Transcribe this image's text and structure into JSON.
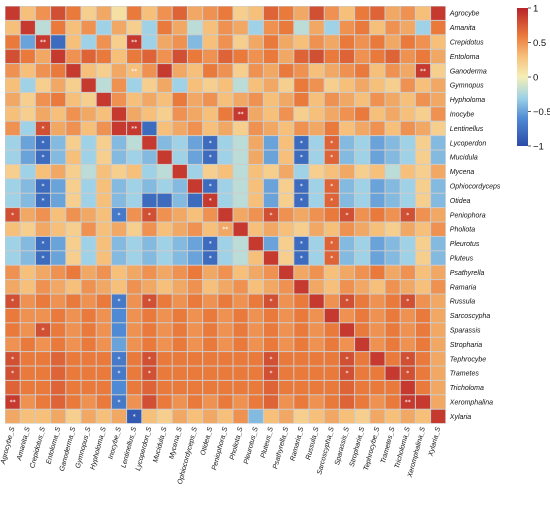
{
  "chart_data": {
    "type": "heatmap",
    "rows": [
      "Agrocybe",
      "Amanita",
      "Crepidotus",
      "Entoloma",
      "Ganoderma",
      "Gymnopus",
      "Hypholoma",
      "Inocybe",
      "Lentinellus",
      "Lycoperdon",
      "Mucidula",
      "Mycena",
      "Ophiocordyceps",
      "Otidea",
      "Peniophora",
      "Pholiota",
      "Pleurotus",
      "Pluteus",
      "Psathyrella",
      "Ramaria",
      "Russula",
      "Sarcoscypha",
      "Sparassis",
      "Stropharia",
      "Tephrocybe",
      "Trametes",
      "Tricholoma",
      "Xeromphalina",
      "Xylaria"
    ],
    "columns": [
      "Agrocybe_S",
      "Amanita_S",
      "Crepidotus_S",
      "Entoloma_S",
      "Ganoderma_S",
      "Gymnopus_S",
      "Hypholoma_S",
      "Inocybe_S",
      "Lentinellus_S",
      "Lycoperdon_S",
      "Mucidula_S",
      "Mycena_S",
      "Ophiocordyceps_S",
      "Otidea_S",
      "Peniophora_S",
      "Pholiota_S",
      "Pleurotus_S",
      "Pluteus_S",
      "Psathyrella_S",
      "Ramaria_S",
      "Russula_S",
      "Sarcoscypha_S",
      "Sparassis_S",
      "Stropharia_S",
      "Tephrocybe_S",
      "Trametes_S",
      "Tricholoma_S",
      "Xeromphalina_S",
      "Xylaria_S"
    ],
    "values": [
      [
        0.9,
        0.3,
        0.5,
        0.8,
        0.6,
        0.2,
        0.4,
        0.1,
        0.6,
        0.3,
        0.5,
        0.7,
        0.4,
        0.5,
        0.6,
        0.2,
        0.3,
        0.7,
        0.6,
        0.4,
        0.8,
        0.5,
        0.3,
        0.6,
        0.7,
        0.4,
        0.5,
        0.3,
        0.9
      ],
      [
        0.3,
        0.9,
        -0.2,
        0.6,
        0.3,
        0.5,
        -0.3,
        0.4,
        0.2,
        -0.3,
        0.6,
        0.4,
        -0.2,
        0.3,
        0.5,
        0.4,
        -0.3,
        0.5,
        0.6,
        -0.2,
        0.4,
        -0.3,
        0.5,
        0.6,
        0.3,
        0.5,
        0.4,
        -0.3,
        0.6
      ],
      [
        0.6,
        -0.5,
        0.9,
        -0.8,
        0.3,
        -0.3,
        0.5,
        0.2,
        0.9,
        -0.3,
        0.4,
        0.5,
        -0.4,
        0.3,
        0.5,
        0.2,
        0.4,
        0.6,
        0.4,
        0.3,
        0.5,
        0.4,
        0.6,
        0.5,
        0.6,
        0.4,
        0.6,
        0.5,
        0.3
      ],
      [
        0.8,
        0.6,
        0.4,
        0.9,
        0.5,
        0.7,
        0.6,
        0.3,
        0.6,
        0.7,
        0.5,
        0.8,
        0.6,
        0.5,
        0.7,
        0.6,
        0.5,
        0.6,
        0.4,
        0.7,
        0.8,
        0.6,
        0.7,
        0.5,
        0.6,
        0.7,
        0.5,
        0.6,
        0.4
      ],
      [
        0.5,
        0.3,
        0.5,
        0.6,
        0.9,
        0.3,
        0.2,
        0.4,
        0.3,
        0.5,
        0.9,
        0.4,
        0.3,
        0.6,
        0.5,
        0.2,
        0.5,
        0.4,
        0.6,
        0.5,
        0.3,
        0.4,
        0.5,
        0.6,
        0.3,
        0.5,
        0.4,
        0.9,
        0.2
      ],
      [
        0.3,
        -0.3,
        0.2,
        0.4,
        0.2,
        0.9,
        -0.2,
        0.5,
        -0.3,
        0.2,
        0.4,
        -0.3,
        0.3,
        0.2,
        0.3,
        -0.2,
        0.3,
        0.4,
        0.2,
        0.6,
        0.5,
        0.2,
        0.3,
        0.4,
        0.3,
        0.2,
        0.5,
        0.3,
        0.4
      ],
      [
        0.4,
        0.2,
        0.5,
        0.6,
        0.3,
        0.2,
        0.9,
        0.5,
        0.3,
        0.4,
        0.3,
        0.6,
        0.4,
        0.5,
        0.3,
        0.4,
        0.5,
        0.3,
        0.4,
        0.6,
        0.3,
        0.5,
        0.4,
        0.3,
        0.5,
        0.4,
        0.3,
        0.5,
        0.4
      ],
      [
        0.3,
        0.2,
        0.4,
        0.3,
        0.5,
        0.4,
        0.3,
        0.9,
        0.4,
        0.3,
        0.2,
        0.5,
        0.4,
        0.3,
        0.6,
        0.9,
        0.4,
        0.3,
        0.5,
        0.2,
        0.3,
        0.4,
        0.5,
        0.6,
        0.3,
        0.4,
        0.3,
        0.2,
        0.5
      ],
      [
        0.5,
        -0.3,
        0.8,
        0.4,
        0.5,
        0.3,
        0.5,
        0.9,
        0.9,
        -0.8,
        0.3,
        0.4,
        0.5,
        0.3,
        0.4,
        0.2,
        0.5,
        0.4,
        0.3,
        0.5,
        0.4,
        0.6,
        0.3,
        0.4,
        0.5,
        0.3,
        0.5,
        0.4,
        0.2
      ],
      [
        -0.3,
        -0.5,
        -0.8,
        -0.4,
        0.2,
        -0.3,
        0.2,
        -0.4,
        -0.2,
        0.9,
        -0.4,
        -0.3,
        -0.5,
        -0.8,
        -0.3,
        -0.2,
        0.4,
        -0.5,
        0.3,
        -0.8,
        -0.3,
        0.7,
        -0.4,
        -0.3,
        -0.5,
        -0.4,
        -0.3,
        0.2,
        -0.4
      ],
      [
        -0.3,
        -0.5,
        -0.8,
        -0.4,
        0.3,
        -0.3,
        0.2,
        -0.4,
        -0.3,
        -0.4,
        0.9,
        -0.3,
        -0.5,
        -0.8,
        -0.3,
        -0.2,
        0.4,
        -0.5,
        0.3,
        -0.8,
        -0.3,
        0.7,
        -0.4,
        -0.3,
        -0.5,
        -0.4,
        -0.3,
        0.2,
        -0.4
      ],
      [
        0.2,
        -0.3,
        0.3,
        0.4,
        0.2,
        -0.2,
        0.3,
        0.2,
        0.3,
        -0.3,
        -0.2,
        0.9,
        -0.3,
        0.2,
        0.3,
        -0.2,
        0.3,
        0.2,
        0.4,
        -0.3,
        0.2,
        0.3,
        0.4,
        0.2,
        0.3,
        -0.2,
        0.3,
        0.2,
        0.4
      ],
      [
        -0.3,
        -0.4,
        -0.8,
        -0.5,
        0.2,
        -0.3,
        0.3,
        -0.4,
        -0.3,
        -0.4,
        -0.3,
        -0.4,
        0.9,
        -0.8,
        -0.3,
        -0.2,
        0.3,
        -0.5,
        0.2,
        -0.8,
        -0.3,
        0.7,
        -0.4,
        -0.3,
        -0.5,
        -0.4,
        -0.3,
        0.2,
        -0.4
      ],
      [
        -0.3,
        -0.4,
        -0.8,
        -0.5,
        0.2,
        -0.3,
        0.3,
        -0.4,
        -0.3,
        -0.8,
        -0.8,
        -0.4,
        -0.8,
        0.9,
        -0.3,
        -0.2,
        0.3,
        -0.5,
        0.2,
        -0.8,
        -0.3,
        0.7,
        -0.4,
        -0.3,
        -0.5,
        -0.4,
        -0.3,
        0.2,
        -0.4
      ],
      [
        0.8,
        0.4,
        0.5,
        0.3,
        0.5,
        0.4,
        0.3,
        -0.7,
        0.5,
        0.8,
        0.5,
        0.4,
        0.3,
        0.5,
        0.9,
        0.4,
        0.5,
        0.8,
        0.5,
        0.4,
        0.5,
        0.6,
        0.8,
        0.5,
        0.6,
        0.5,
        0.8,
        0.5,
        0.4
      ],
      [
        0.3,
        0.2,
        0.4,
        0.3,
        0.2,
        0.5,
        0.3,
        0.4,
        0.2,
        0.5,
        0.3,
        0.4,
        0.5,
        0.3,
        0.4,
        0.9,
        0.3,
        0.4,
        0.3,
        0.2,
        0.4,
        0.3,
        0.5,
        0.4,
        0.3,
        0.2,
        0.4,
        0.3,
        0.5
      ],
      [
        -0.3,
        -0.4,
        -0.8,
        -0.5,
        0.2,
        -0.3,
        0.3,
        -0.4,
        -0.3,
        -0.4,
        -0.3,
        -0.4,
        -0.5,
        -0.8,
        -0.3,
        -0.2,
        0.9,
        -0.5,
        0.2,
        -0.8,
        -0.3,
        0.7,
        -0.4,
        -0.3,
        -0.5,
        -0.4,
        -0.3,
        0.2,
        -0.4
      ],
      [
        -0.3,
        -0.4,
        -0.8,
        -0.5,
        0.2,
        -0.3,
        0.3,
        -0.4,
        -0.3,
        -0.4,
        -0.3,
        -0.4,
        -0.5,
        -0.8,
        -0.3,
        -0.2,
        0.3,
        0.9,
        0.2,
        -0.8,
        -0.3,
        0.7,
        -0.4,
        -0.3,
        -0.5,
        -0.4,
        -0.3,
        0.2,
        -0.4
      ],
      [
        0.5,
        0.3,
        0.4,
        0.5,
        0.6,
        0.4,
        0.5,
        0.3,
        0.4,
        0.5,
        0.4,
        0.5,
        0.6,
        0.4,
        0.5,
        0.3,
        0.4,
        0.5,
        0.9,
        0.4,
        0.5,
        0.3,
        0.4,
        0.5,
        0.6,
        0.4,
        0.5,
        0.3,
        0.4
      ],
      [
        0.4,
        0.3,
        0.5,
        0.4,
        0.3,
        0.5,
        0.4,
        0.3,
        0.5,
        0.4,
        0.3,
        0.4,
        0.5,
        0.3,
        0.4,
        0.5,
        0.3,
        0.4,
        0.5,
        0.9,
        0.4,
        0.3,
        0.5,
        0.4,
        0.3,
        0.5,
        0.4,
        0.3,
        0.5
      ],
      [
        0.8,
        0.5,
        0.6,
        0.5,
        0.6,
        0.5,
        0.6,
        -0.7,
        0.5,
        0.8,
        0.6,
        0.5,
        0.6,
        0.5,
        0.6,
        0.5,
        0.6,
        0.8,
        0.5,
        0.6,
        0.9,
        0.5,
        0.8,
        0.6,
        0.5,
        0.6,
        0.8,
        0.5,
        0.4
      ],
      [
        0.6,
        0.5,
        0.5,
        0.6,
        0.5,
        0.6,
        0.5,
        -0.6,
        0.5,
        0.6,
        0.5,
        0.6,
        0.5,
        0.6,
        0.5,
        0.6,
        0.5,
        0.6,
        0.5,
        0.6,
        0.5,
        0.9,
        0.5,
        0.6,
        0.5,
        0.6,
        0.5,
        0.6,
        0.4
      ],
      [
        0.6,
        0.5,
        0.8,
        0.6,
        0.5,
        0.6,
        0.5,
        -0.6,
        0.5,
        0.6,
        0.5,
        0.6,
        0.5,
        0.6,
        0.5,
        0.6,
        0.5,
        0.6,
        0.5,
        0.6,
        0.5,
        0.6,
        0.9,
        0.6,
        0.5,
        0.6,
        0.5,
        0.6,
        0.4
      ],
      [
        0.5,
        0.6,
        0.5,
        0.6,
        0.5,
        0.6,
        0.5,
        -0.5,
        0.5,
        0.6,
        0.5,
        0.6,
        0.5,
        0.6,
        0.5,
        0.6,
        0.5,
        0.6,
        0.5,
        0.6,
        0.5,
        0.6,
        0.5,
        0.9,
        0.5,
        0.6,
        0.5,
        0.6,
        0.4
      ],
      [
        0.8,
        0.6,
        0.6,
        0.7,
        0.6,
        0.6,
        0.6,
        -0.7,
        0.6,
        0.8,
        0.6,
        0.6,
        0.6,
        0.6,
        0.6,
        0.6,
        0.6,
        0.8,
        0.6,
        0.6,
        0.6,
        0.6,
        0.8,
        0.6,
        0.9,
        0.6,
        0.8,
        0.6,
        0.4
      ],
      [
        0.8,
        0.6,
        0.6,
        0.7,
        0.6,
        0.6,
        0.6,
        -0.7,
        0.6,
        0.8,
        0.6,
        0.6,
        0.6,
        0.6,
        0.6,
        0.6,
        0.6,
        0.8,
        0.6,
        0.6,
        0.6,
        0.6,
        0.8,
        0.6,
        0.6,
        0.9,
        0.8,
        0.6,
        0.4
      ],
      [
        0.7,
        0.6,
        0.6,
        0.7,
        0.6,
        0.6,
        0.6,
        -0.6,
        0.6,
        0.7,
        0.6,
        0.6,
        0.6,
        0.6,
        0.6,
        0.6,
        0.6,
        0.7,
        0.6,
        0.6,
        0.6,
        0.6,
        0.7,
        0.6,
        0.6,
        0.6,
        0.9,
        0.6,
        0.4
      ],
      [
        0.9,
        0.5,
        0.6,
        0.7,
        0.6,
        0.5,
        0.6,
        -0.7,
        0.5,
        0.8,
        0.6,
        0.5,
        0.6,
        0.5,
        0.6,
        0.5,
        0.6,
        0.7,
        0.5,
        0.6,
        0.5,
        0.6,
        0.7,
        0.6,
        0.5,
        0.6,
        0.9,
        0.9,
        0.4
      ],
      [
        0.4,
        0.3,
        0.3,
        0.4,
        0.2,
        0.4,
        0.3,
        0.4,
        -0.9,
        0.3,
        0.2,
        0.4,
        0.3,
        0.4,
        0.3,
        0.5,
        -0.4,
        0.3,
        0.4,
        0.2,
        0.3,
        0.4,
        0.3,
        0.2,
        0.4,
        0.3,
        0.4,
        0.3,
        0.9
      ]
    ],
    "significance": [
      [
        2,
        2,
        "**"
      ],
      [
        2,
        8,
        "**"
      ],
      [
        4,
        8,
        "**"
      ],
      [
        4,
        27,
        "**"
      ],
      [
        7,
        15,
        "**"
      ],
      [
        8,
        2,
        "*"
      ],
      [
        8,
        8,
        "**"
      ],
      [
        9,
        2,
        "*"
      ],
      [
        9,
        13,
        "*"
      ],
      [
        9,
        19,
        "*"
      ],
      [
        9,
        21,
        "*"
      ],
      [
        10,
        2,
        "*"
      ],
      [
        10,
        13,
        "*"
      ],
      [
        10,
        19,
        "*"
      ],
      [
        10,
        21,
        "*"
      ],
      [
        12,
        2,
        "*"
      ],
      [
        12,
        13,
        "*"
      ],
      [
        12,
        19,
        "*"
      ],
      [
        12,
        21,
        "*"
      ],
      [
        13,
        2,
        "*"
      ],
      [
        13,
        13,
        "*"
      ],
      [
        13,
        19,
        "*"
      ],
      [
        13,
        21,
        "*"
      ],
      [
        14,
        0,
        "*"
      ],
      [
        14,
        7,
        "*"
      ],
      [
        14,
        9,
        "*"
      ],
      [
        14,
        17,
        "*"
      ],
      [
        14,
        22,
        "*"
      ],
      [
        14,
        26,
        "*"
      ],
      [
        15,
        14,
        "**"
      ],
      [
        16,
        2,
        "*"
      ],
      [
        16,
        13,
        "*"
      ],
      [
        16,
        19,
        "*"
      ],
      [
        16,
        21,
        "*"
      ],
      [
        17,
        2,
        "*"
      ],
      [
        17,
        13,
        "*"
      ],
      [
        17,
        19,
        "*"
      ],
      [
        17,
        21,
        "*"
      ],
      [
        20,
        0,
        "*"
      ],
      [
        20,
        7,
        "*"
      ],
      [
        20,
        9,
        "*"
      ],
      [
        20,
        17,
        "*"
      ],
      [
        20,
        22,
        "*"
      ],
      [
        20,
        26,
        "*"
      ],
      [
        22,
        2,
        "*"
      ],
      [
        24,
        0,
        "*"
      ],
      [
        24,
        7,
        "*"
      ],
      [
        24,
        9,
        "*"
      ],
      [
        24,
        17,
        "*"
      ],
      [
        24,
        22,
        "*"
      ],
      [
        24,
        26,
        "*"
      ],
      [
        25,
        0,
        "*"
      ],
      [
        25,
        7,
        "*"
      ],
      [
        25,
        9,
        "*"
      ],
      [
        25,
        17,
        "*"
      ],
      [
        25,
        22,
        "*"
      ],
      [
        25,
        26,
        "*"
      ],
      [
        27,
        0,
        "**"
      ],
      [
        27,
        7,
        "*"
      ],
      [
        27,
        26,
        "**"
      ],
      [
        28,
        8,
        "*"
      ]
    ],
    "colorbar": {
      "ticks": [
        "1",
        "0.5",
        "0",
        "−0.5",
        "−1"
      ],
      "range": [
        -1,
        1
      ],
      "colors": {
        "neg": "#2b4ba8",
        "mid": "#f5efb8",
        "pos": "#b8232a"
      }
    },
    "xlabel": "",
    "ylabel": "",
    "title": "",
    "legend": "right"
  }
}
